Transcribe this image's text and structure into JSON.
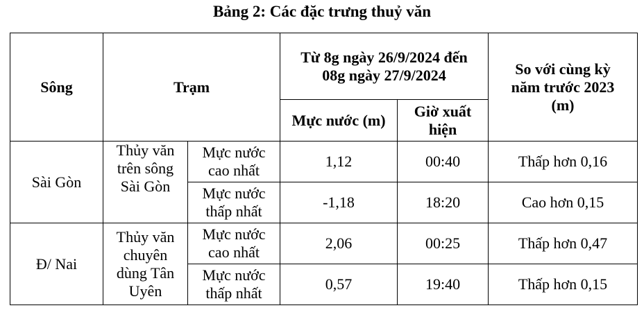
{
  "title": "Bảng 2: Các đặc trưng thuỷ văn",
  "header": {
    "river": "Sông",
    "station": "Trạm",
    "period": "Từ 8g ngày 26/9/2024 đến 08g ngày 27/9/2024",
    "level": "Mực nước (m)",
    "time": "Giờ xuất hiện",
    "compare": "So với cùng kỳ năm trước 2023 (m)"
  },
  "groups": [
    {
      "river": "Sài Gòn",
      "station": "Thủy văn trên sông Sài Gòn",
      "rows": [
        {
          "type": "Mực nước cao nhất",
          "level": "1,12",
          "time": "00:40",
          "compare": "Thấp hơn 0,16"
        },
        {
          "type": "Mực nước thấp nhất",
          "level": "-1,18",
          "time": "18:20",
          "compare": "Cao hơn 0,15"
        }
      ]
    },
    {
      "river": "Đ/ Nai",
      "station": "Thủy văn chuyên dùng Tân Uyên",
      "rows": [
        {
          "type": "Mực nước cao nhất",
          "level": "2,06",
          "time": "00:25",
          "compare": "Thấp hơn 0,47"
        },
        {
          "type": "Mực nước thấp nhất",
          "level": "0,57",
          "time": "19:40",
          "compare": "Thấp hơn 0,15"
        }
      ]
    }
  ]
}
